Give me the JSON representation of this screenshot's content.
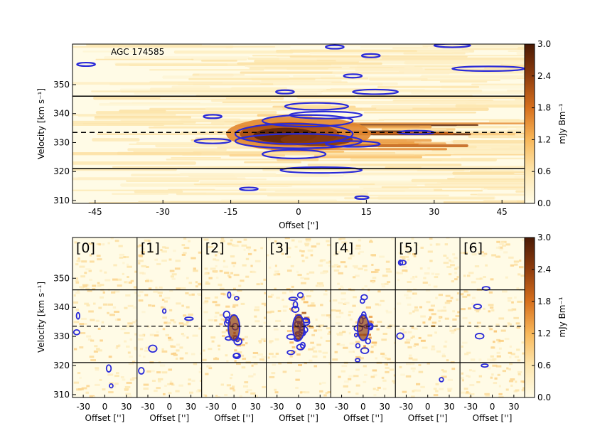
{
  "chart_data": [
    {
      "type": "heatmap",
      "title": "AGC 174585",
      "xlabel": "Offset ['']",
      "ylabel": "Velocity [km s⁻¹]",
      "xlim": [
        -50,
        50
      ],
      "ylim": [
        309,
        364
      ],
      "xticks": [
        -45,
        -30,
        -15,
        0,
        15,
        30,
        45
      ],
      "yticks": [
        310,
        320,
        330,
        340,
        350
      ],
      "colorbar": {
        "label": "mJy Bm⁻¹",
        "min": 0.0,
        "max": 3.0,
        "ticks": [
          "0.0",
          "0.6",
          "1.2",
          "1.8",
          "2.4",
          "3.0"
        ]
      },
      "colormap": [
        "#fffbe6",
        "#fde6ae",
        "#f8b85a",
        "#d7701d",
        "#8f3d0e",
        "#4a1a05"
      ],
      "contour_color": "#2a2ad8",
      "solid_lines_velocity": [
        346,
        321
      ],
      "dashed_line_velocity": 333.5,
      "emission_peak": {
        "offset": 0,
        "velocity": 333,
        "value": 2.9
      }
    },
    {
      "type": "heatmap",
      "panels": [
        "[0]",
        "[1]",
        "[2]",
        "[3]",
        "[4]",
        "[5]",
        "[6]"
      ],
      "xlabel": "Offset ['']",
      "ylabel": "Velocity [km s⁻¹]",
      "xlim": [
        -45,
        45
      ],
      "ylim": [
        309,
        364
      ],
      "xticks": [
        -30,
        0,
        30
      ],
      "xtick_labels": [
        "-30",
        "0",
        "30"
      ],
      "yticks": [
        310,
        320,
        330,
        340,
        350
      ],
      "colorbar": {
        "label": "mJy Bm⁻¹",
        "min": 0.0,
        "max": 3.0,
        "ticks": [
          "0.0",
          "0.6",
          "1.2",
          "1.8",
          "2.4",
          "3.0"
        ]
      },
      "solid_lines_velocity": [
        346,
        321
      ],
      "dashed_line_velocity": 333.5,
      "panel_emission_strength": [
        0.1,
        0.15,
        0.6,
        1.0,
        0.7,
        0.15,
        0.1
      ]
    }
  ]
}
